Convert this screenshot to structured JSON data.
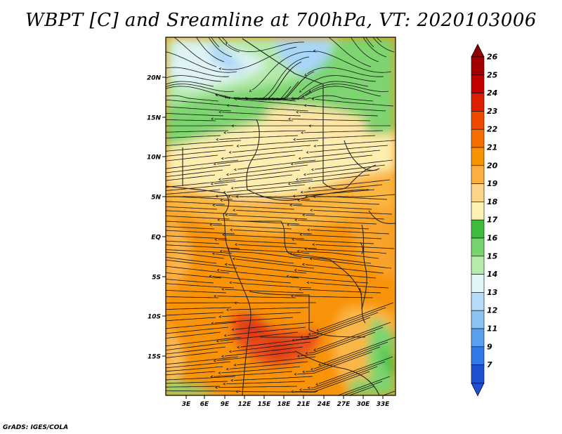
{
  "title": "WBPT [C] and Sreamline at 700hPa, VT: 2020103006",
  "credit": "GrADS: IGES/COLA",
  "map": {
    "lat_labels": [
      "20N",
      "15N",
      "10N",
      "5N",
      "EQ",
      "5S",
      "10S",
      "15S"
    ],
    "lon_labels": [
      "3E",
      "6E",
      "9E",
      "12E",
      "15E",
      "18E",
      "21E",
      "24E",
      "27E",
      "30E",
      "33E"
    ]
  },
  "colorbar": {
    "labels": [
      "26",
      "25",
      "24",
      "23",
      "22",
      "21",
      "20",
      "19",
      "18",
      "17",
      "16",
      "15",
      "14",
      "13",
      "12",
      "11",
      "9",
      "7"
    ],
    "colors": [
      "#a50000",
      "#c30000",
      "#de1e00",
      "#f04a00",
      "#f56e00",
      "#f89300",
      "#fbb040",
      "#fbd68a",
      "#fdf2b3",
      "#3cbe3c",
      "#76d46e",
      "#b4eaaa",
      "#e0f6f6",
      "#b4dcfa",
      "#8cc3f5",
      "#5aa0f0",
      "#3278e6",
      "#1e50d2"
    ],
    "top_color": "#8c0000",
    "bottom_color": "#1e50d2"
  }
}
